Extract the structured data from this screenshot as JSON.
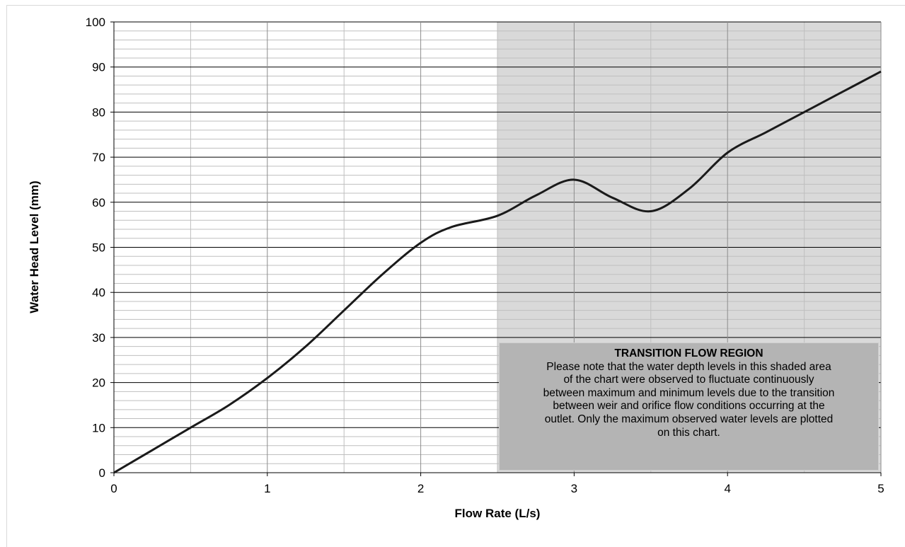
{
  "chart_data": {
    "type": "line",
    "xlabel": "Flow Rate (L/s)",
    "ylabel": "Water Head Level (mm)",
    "xlim": [
      0,
      5
    ],
    "ylim": [
      0,
      100
    ],
    "x_ticks": [
      "0",
      "1",
      "2",
      "3",
      "4",
      "5"
    ],
    "y_ticks": [
      "0",
      "10",
      "20",
      "30",
      "40",
      "50",
      "60",
      "70",
      "80",
      "90",
      "100"
    ],
    "grid": "major and minor",
    "series": [
      {
        "color": "#1a1a1a",
        "x": [
          0,
          0.25,
          0.5,
          0.75,
          1.0,
          1.25,
          1.5,
          1.75,
          2.0,
          2.2,
          2.5,
          2.75,
          3.0,
          3.25,
          3.5,
          3.75,
          4.0,
          4.25,
          4.5,
          4.75,
          5.0
        ],
        "y": [
          0,
          5,
          10,
          15,
          21,
          28,
          36,
          44,
          51,
          54.5,
          57,
          61.5,
          65,
          61,
          58,
          63,
          71,
          75.5,
          80,
          84.5,
          89
        ]
      }
    ],
    "shaded_region": {
      "x_start": 2.5,
      "x_end": 5,
      "color": "#d9d9d9"
    },
    "annotation": {
      "title": "TRANSITION FLOW REGION",
      "lines": [
        "Please note that the water depth levels in this shaded area",
        "of the chart were observed to fluctuate continuously",
        "between maximum and minimum levels due to the transition",
        "between weir and orifice flow conditions occurring at the",
        "outlet. Only the maximum observed  water levels are plotted",
        "on this chart."
      ]
    }
  }
}
